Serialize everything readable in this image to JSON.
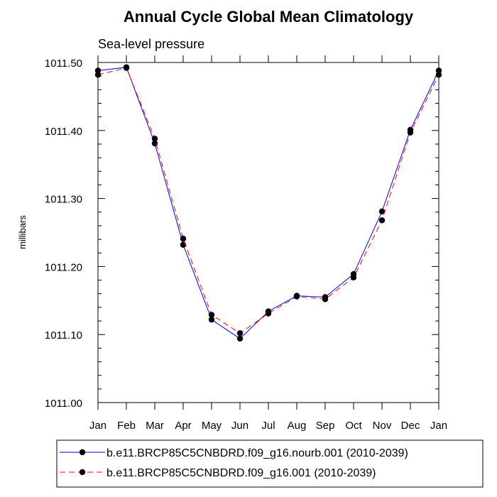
{
  "chart_data": {
    "type": "line",
    "title": "Annual Cycle Global Mean Climatology",
    "subtitle": "Sea-level pressure",
    "ylabel": "millibars",
    "xlabel": "",
    "ylim": [
      1011.0,
      1011.5
    ],
    "yticks": [
      "1011.00",
      "1011.10",
      "1011.20",
      "1011.30",
      "1011.40",
      "1011.50"
    ],
    "ytick_values": [
      1011.0,
      1011.1,
      1011.2,
      1011.3,
      1011.4,
      1011.5
    ],
    "categories": [
      "Jan",
      "Feb",
      "Mar",
      "Apr",
      "May",
      "Jun",
      "Jul",
      "Aug",
      "Sep",
      "Oct",
      "Nov",
      "Dec",
      "Jan"
    ],
    "series": [
      {
        "name": "b.e11.BRCP85C5CNBDRD.f09_g16.nourb.001 (2010-2039)",
        "color": "#0000ff",
        "dash": "solid",
        "values": [
          1011.488,
          1011.493,
          1011.381,
          1011.232,
          1011.122,
          1011.094,
          1011.134,
          1011.157,
          1011.155,
          1011.189,
          1011.281,
          1011.401,
          1011.488
        ]
      },
      {
        "name": "b.e11.BRCP85C5CNBDRD.f09_g16.001 (2010-2039)",
        "color": "#ff0000",
        "dash": "dashed",
        "values": [
          1011.482,
          1011.492,
          1011.388,
          1011.241,
          1011.129,
          1011.102,
          1011.131,
          1011.156,
          1011.152,
          1011.184,
          1011.268,
          1011.397,
          1011.482
        ]
      }
    ],
    "grid": false,
    "legend_position": "bottom"
  }
}
